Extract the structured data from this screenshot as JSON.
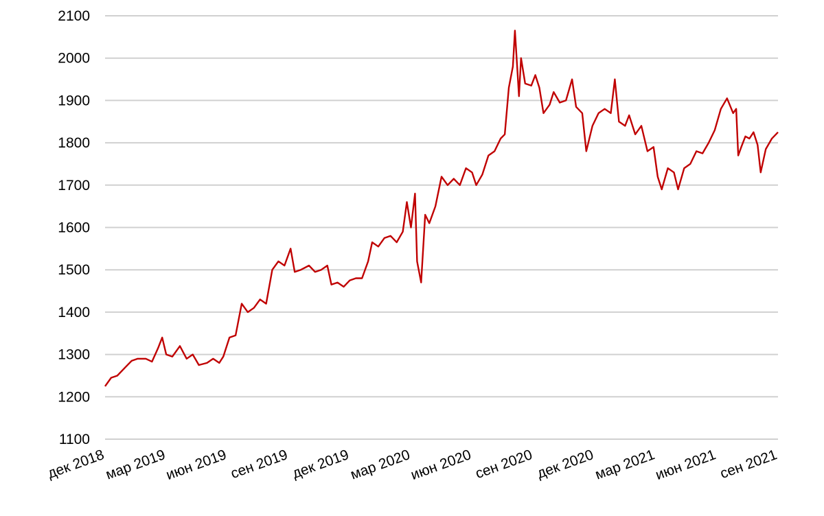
{
  "chart_data": {
    "type": "line",
    "xlim": [
      0,
      33
    ],
    "xticks": [
      {
        "value": 0,
        "label": "дек 2018"
      },
      {
        "value": 3,
        "label": "мар 2019"
      },
      {
        "value": 6,
        "label": "июн 2019"
      },
      {
        "value": 9,
        "label": "сен 2019"
      },
      {
        "value": 12,
        "label": "дек 2019"
      },
      {
        "value": 15,
        "label": "мар 2020"
      },
      {
        "value": 18,
        "label": "июн 2020"
      },
      {
        "value": 21,
        "label": "сен 2020"
      },
      {
        "value": 24,
        "label": "дек 2020"
      },
      {
        "value": 27,
        "label": "мар 2021"
      },
      {
        "value": 30,
        "label": "июн 2021"
      },
      {
        "value": 33,
        "label": "сен 2021"
      }
    ],
    "ylim": [
      1100,
      2100
    ],
    "yticks": [
      1100,
      1200,
      1300,
      1400,
      1500,
      1600,
      1700,
      1800,
      1900,
      2000,
      2100
    ],
    "grid": true,
    "x": [
      0,
      0.3,
      0.6,
      1,
      1.3,
      1.6,
      2,
      2.3,
      2.6,
      2.8,
      3,
      3.3,
      3.67,
      4,
      4.3,
      4.6,
      5,
      5.3,
      5.6,
      5.8,
      6.1,
      6.4,
      6.7,
      7,
      7.3,
      7.6,
      7.9,
      8.2,
      8.5,
      8.8,
      9.1,
      9.3,
      9.6,
      10,
      10.3,
      10.6,
      10.9,
      11.1,
      11.4,
      11.7,
      12,
      12.3,
      12.6,
      12.9,
      13.1,
      13.4,
      13.7,
      14,
      14.3,
      14.6,
      14.8,
      15,
      15.2,
      15.3,
      15.5,
      15.7,
      15.9,
      16.2,
      16.5,
      16.8,
      17.1,
      17.4,
      17.7,
      18,
      18.2,
      18.5,
      18.8,
      19.1,
      19.4,
      19.6,
      19.8,
      20,
      20.1,
      20.3,
      20.4,
      20.6,
      20.9,
      21.1,
      21.3,
      21.5,
      21.8,
      22,
      22.3,
      22.6,
      22.9,
      23.1,
      23.4,
      23.6,
      23.9,
      24.2,
      24.5,
      24.8,
      25,
      25.2,
      25.5,
      25.7,
      26,
      26.3,
      26.6,
      26.9,
      27.1,
      27.3,
      27.6,
      27.9,
      28.1,
      28.4,
      28.7,
      29,
      29.3,
      29.6,
      29.9,
      30.2,
      30.5,
      30.8,
      30.95,
      31.05,
      31.2,
      31.4,
      31.6,
      31.8,
      32,
      32.15,
      32.4,
      32.7,
      33
    ],
    "series": [
      {
        "color": "#c00000",
        "values": [
          1225,
          1245,
          1250,
          1270,
          1285,
          1290,
          1290,
          1283,
          1315,
          1340,
          1300,
          1295,
          1320,
          1290,
          1300,
          1275,
          1280,
          1290,
          1280,
          1295,
          1340,
          1345,
          1420,
          1400,
          1410,
          1430,
          1420,
          1500,
          1520,
          1510,
          1550,
          1495,
          1500,
          1510,
          1495,
          1500,
          1510,
          1465,
          1470,
          1460,
          1475,
          1480,
          1480,
          1520,
          1565,
          1555,
          1575,
          1580,
          1565,
          1590,
          1660,
          1600,
          1680,
          1520,
          1470,
          1630,
          1610,
          1650,
          1720,
          1700,
          1715,
          1700,
          1740,
          1730,
          1700,
          1725,
          1770,
          1780,
          1810,
          1820,
          1930,
          1980,
          2065,
          1910,
          2000,
          1940,
          1935,
          1960,
          1930,
          1870,
          1890,
          1920,
          1895,
          1900,
          1950,
          1885,
          1870,
          1780,
          1840,
          1870,
          1880,
          1870,
          1950,
          1850,
          1840,
          1865,
          1820,
          1840,
          1780,
          1790,
          1720,
          1690,
          1740,
          1730,
          1690,
          1740,
          1750,
          1780,
          1775,
          1800,
          1830,
          1880,
          1905,
          1870,
          1880,
          1770,
          1790,
          1815,
          1810,
          1825,
          1795,
          1730,
          1785,
          1810,
          1825
        ]
      }
    ]
  }
}
